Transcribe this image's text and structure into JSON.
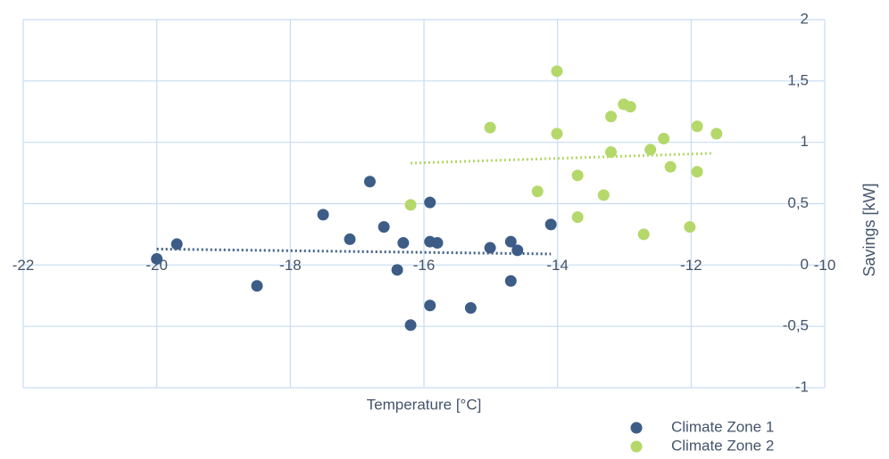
{
  "chart_data": {
    "type": "scatter",
    "x_label": "Temperature [°C]",
    "y_label": "Savings [kW]",
    "xlim": [
      -22,
      -10
    ],
    "xticks": [
      -22,
      -20,
      -18,
      -16,
      -14,
      -12,
      -10
    ],
    "ylim": [
      -1,
      2
    ],
    "yticks": [
      {
        "value": -1,
        "label": "-1"
      },
      {
        "value": -0.5,
        "label": "-0,5"
      },
      0,
      {
        "value": 0.5,
        "label": "0,5"
      },
      1,
      {
        "value": 1.5,
        "label": "1,5"
      },
      2
    ],
    "grid": true,
    "legend": "bottom-right",
    "series": [
      {
        "name": "Climate Zone 1",
        "color": "#3d5d87",
        "x": [
          -20,
          -19.7,
          -18.5,
          -17.51,
          -17.11,
          -16.81,
          -16.6,
          -16.4,
          -16.31,
          -16.2,
          -15.91,
          -15.91,
          -15.91,
          -15.8,
          -15.3,
          -15.01,
          -14.7,
          -14.7,
          -14.6,
          -14.1
        ],
        "values": [
          0.05,
          0.17,
          -0.17,
          0.41,
          0.21,
          0.68,
          0.31,
          -0.04,
          0.18,
          -0.49,
          0.51,
          0.19,
          -0.33,
          0.18,
          -0.35,
          0.14,
          0.19,
          -0.13,
          0.12,
          0.33
        ],
        "trendline": {
          "x": [
            -20,
            -14.1
          ],
          "y": [
            0.13,
            0.09
          ]
        }
      },
      {
        "name": "Climate Zone 2",
        "color": "#b4d86a",
        "x": [
          -16.2,
          -15.01,
          -14.3,
          -14.01,
          -14.01,
          -13.7,
          -13.7,
          -13.31,
          -13.2,
          -13.2,
          -13.01,
          -12.91,
          -12.71,
          -12.61,
          -12.41,
          -12.31,
          -12.02,
          -11.91,
          -11.91,
          -11.62
        ],
        "values": [
          0.49,
          1.12,
          0.6,
          1.58,
          1.07,
          0.39,
          0.73,
          0.57,
          1.21,
          0.92,
          1.31,
          1.29,
          0.25,
          0.94,
          1.03,
          0.8,
          0.31,
          1.13,
          0.76,
          1.07
        ],
        "trendline": {
          "x": [
            -16.2,
            -11.7
          ],
          "y": [
            0.83,
            0.91
          ]
        }
      }
    ]
  }
}
